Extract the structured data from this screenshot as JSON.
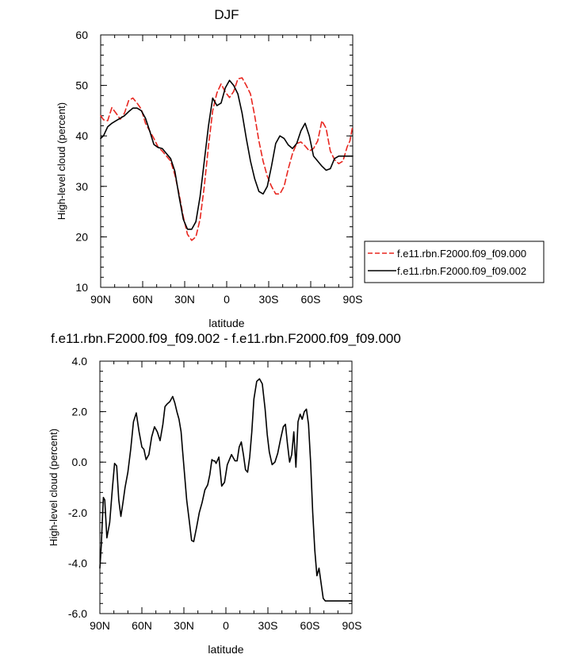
{
  "chart_data": [
    {
      "type": "line",
      "title": "DJF",
      "xlabel": "latitude",
      "ylabel": "High-level cloud (percent)",
      "xlim": [
        90,
        -90
      ],
      "ylim": [
        10,
        60
      ],
      "x_ticks": [
        90,
        60,
        30,
        0,
        -30,
        -60,
        -90
      ],
      "x_tick_labels": [
        "90N",
        "60N",
        "30N",
        "0",
        "30S",
        "60S",
        "90S"
      ],
      "y_ticks": [
        10,
        20,
        30,
        40,
        50,
        60
      ],
      "y_tick_labels": [
        "10",
        "20",
        "30",
        "40",
        "50",
        "60"
      ],
      "legend_position": "right",
      "x": [
        90,
        88,
        85,
        82,
        79,
        76,
        73,
        70,
        67,
        64,
        61,
        58,
        55,
        52,
        49,
        46,
        43,
        40,
        37,
        34,
        31,
        28,
        25,
        22,
        19,
        16,
        13,
        10,
        7,
        4,
        1,
        -2,
        -5,
        -8,
        -11,
        -14,
        -17,
        -20,
        -23,
        -26,
        -29,
        -32,
        -35,
        -38,
        -41,
        -44,
        -47,
        -50,
        -53,
        -56,
        -59,
        -62,
        -65,
        -68,
        -71,
        -74,
        -77,
        -80,
        -83,
        -86,
        -88,
        -90
      ],
      "series": [
        {
          "name": "f.e11.rbn.F2000.f09_f09.000",
          "color": "#e8261f",
          "dash": "dashed",
          "values": [
            44.0,
            43.2,
            43.0,
            45.6,
            44.5,
            43.3,
            44.5,
            47.0,
            47.5,
            46.5,
            45.3,
            42.5,
            41.0,
            39.5,
            37.8,
            37.0,
            36.0,
            35.0,
            32.3,
            28.5,
            24.0,
            20.5,
            19.3,
            20.0,
            23.5,
            30.0,
            38.0,
            45.0,
            48.5,
            50.3,
            48.7,
            47.6,
            48.8,
            51.3,
            51.5,
            50.0,
            48.3,
            44.0,
            39.0,
            35.0,
            32.0,
            30.0,
            28.5,
            28.5,
            30.0,
            33.5,
            36.5,
            38.5,
            38.8,
            38.0,
            37.0,
            37.5,
            39.0,
            43.0,
            41.5,
            37.0,
            35.3,
            34.5,
            35.0,
            37.8,
            39.0,
            42.0
          ]
        },
        {
          "name": "f.e11.rbn.F2000.f09_f09.002",
          "color": "#000000",
          "dash": "solid",
          "values": [
            39.5,
            40.0,
            41.8,
            42.5,
            43.0,
            43.5,
            44.0,
            44.8,
            45.5,
            45.5,
            45.0,
            43.5,
            41.0,
            38.3,
            37.7,
            37.5,
            36.5,
            35.5,
            33.0,
            28.0,
            23.5,
            21.5,
            21.5,
            23.0,
            28.0,
            35.0,
            42.0,
            47.5,
            46.0,
            46.5,
            49.5,
            51.0,
            50.0,
            48.3,
            44.5,
            39.5,
            35.0,
            31.5,
            29.0,
            28.5,
            30.0,
            34.0,
            38.5,
            40.0,
            39.5,
            38.2,
            37.5,
            38.5,
            41.0,
            42.5,
            40.0,
            36.0,
            35.0,
            34.0,
            33.2,
            33.5,
            35.5,
            36.0,
            36.0,
            36.0,
            36.0,
            36.0
          ]
        }
      ]
    },
    {
      "type": "line",
      "title": "f.e11.rbn.F2000.f09_f09.002 - f.e11.rbn.F2000.f09_f09.000",
      "xlabel": "latitude",
      "ylabel": "High-level cloud (percent)",
      "xlim": [
        90,
        -90
      ],
      "ylim": [
        -6,
        4
      ],
      "x_ticks": [
        90,
        60,
        30,
        0,
        -30,
        -60,
        -90
      ],
      "x_tick_labels": [
        "90N",
        "60N",
        "30N",
        "0",
        "30S",
        "60S",
        "90S"
      ],
      "y_ticks": [
        -6,
        -4,
        -2,
        0,
        2,
        4
      ],
      "y_tick_labels": [
        "-6.0",
        "-4.0",
        "-2.0",
        "0.0",
        "2.0",
        "4.0"
      ],
      "series": [
        {
          "color": "#000000",
          "x": [
            90,
            89,
            87.5,
            86.5,
            85,
            83,
            81,
            79.5,
            78,
            76.5,
            75,
            73.5,
            72,
            70,
            68,
            66,
            64,
            62,
            60,
            58.5,
            57,
            55,
            53,
            51,
            49,
            47,
            45,
            43.5,
            42,
            40,
            38,
            36.5,
            35,
            33.5,
            32,
            31,
            29.5,
            28,
            26,
            24.5,
            23,
            21,
            19,
            17,
            15,
            13,
            11.5,
            10,
            9,
            8,
            7,
            5,
            3,
            1,
            -1,
            -2.5,
            -4,
            -5,
            -6.5,
            -8,
            -9.5,
            -11,
            -12.5,
            -14,
            -15.5,
            -17,
            -18.5,
            -20,
            -22,
            -24,
            -26,
            -28,
            -29.5,
            -31,
            -33,
            -35,
            -37,
            -39,
            -41,
            -42.5,
            -44,
            -45.5,
            -47,
            -48.5,
            -50,
            -51.5,
            -53,
            -54.5,
            -56,
            -57.5,
            -59,
            -60.5,
            -62,
            -63.5,
            -65,
            -66.5,
            -68,
            -69.5,
            -71,
            -72.5,
            -74,
            -75.5,
            -77,
            -78.5,
            -80,
            -81.5,
            -83,
            -84.5,
            -86,
            -87,
            -88,
            -89,
            -90
          ],
          "values": [
            -4.2,
            -3.3,
            -1.4,
            -1.5,
            -3.0,
            -2.4,
            -1.0,
            -0.05,
            -0.15,
            -1.5,
            -2.15,
            -1.6,
            -1.0,
            -0.4,
            0.5,
            1.6,
            1.95,
            1.2,
            0.6,
            0.5,
            0.1,
            0.3,
            1.0,
            1.4,
            1.2,
            0.85,
            1.5,
            2.2,
            2.3,
            2.4,
            2.6,
            2.35,
            2.0,
            1.7,
            1.2,
            0.5,
            -0.5,
            -1.5,
            -2.4,
            -3.1,
            -3.15,
            -2.6,
            -2.0,
            -1.6,
            -1.1,
            -0.9,
            -0.5,
            0.1,
            0.05,
            0.05,
            -0.05,
            0.2,
            -0.95,
            -0.8,
            -0.1,
            0.1,
            0.3,
            0.2,
            0.05,
            0.05,
            0.6,
            0.8,
            0.3,
            -0.3,
            -0.4,
            0.2,
            1.2,
            2.5,
            3.2,
            3.3,
            3.1,
            2.1,
            1.1,
            0.4,
            -0.1,
            0.0,
            0.35,
            0.9,
            1.4,
            1.5,
            0.7,
            0.0,
            0.3,
            1.2,
            -0.2,
            1.6,
            1.9,
            1.7,
            2.0,
            2.1,
            1.5,
            0.0,
            -2.0,
            -3.5,
            -4.5,
            -4.2,
            -4.8,
            -5.4,
            -5.5,
            -5.5,
            -5.5,
            -5.5,
            -5.5,
            -5.5,
            -5.5,
            -5.5,
            -5.5,
            -5.5,
            -5.5,
            -5.5,
            -5.5,
            -5.5,
            -5.5
          ]
        }
      ]
    }
  ]
}
